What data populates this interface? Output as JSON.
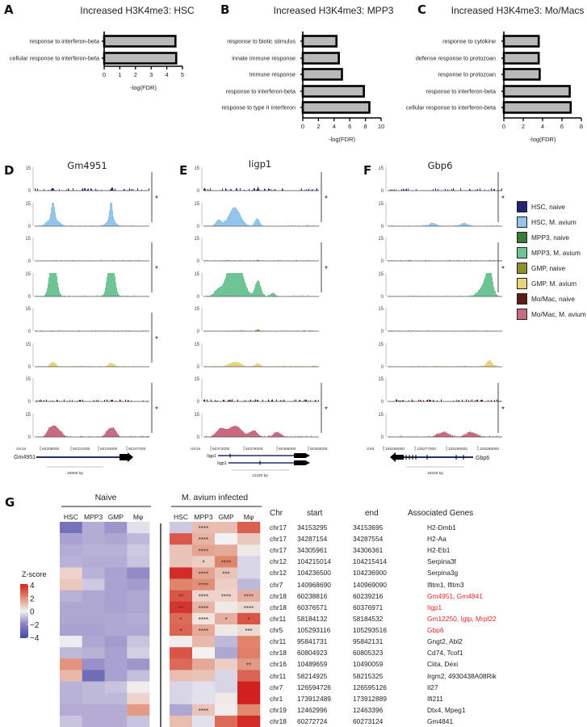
{
  "panel_labels": {
    "a": "A",
    "b": "B",
    "c": "C",
    "d": "D",
    "e": "E",
    "f": "F",
    "g": "G"
  },
  "chart_data": [
    {
      "type": "bar",
      "orientation": "horizontal",
      "panel": "A",
      "title": "Increased H3K4me3: HSC",
      "xlabel": "-log(FDR)",
      "xlim": [
        0,
        5
      ],
      "xticks": [
        0,
        1,
        2,
        3,
        4,
        5
      ],
      "categories": [
        "response to interferon-beta",
        "cellular response to interferon-beta"
      ],
      "values": [
        4.55,
        4.6
      ]
    },
    {
      "type": "bar",
      "orientation": "horizontal",
      "panel": "B",
      "title": "Increased H3K4me3: MPP3",
      "xlabel": "-log(FDR)",
      "xlim": [
        0,
        10
      ],
      "xticks": [
        0,
        2,
        4,
        6,
        8,
        10
      ],
      "categories": [
        "response to biotic stimulus",
        "innate immune response",
        "immune response",
        "response to interferon-beta",
        "response to type II interferon"
      ],
      "values": [
        4.3,
        4.6,
        5.0,
        7.8,
        8.5
      ]
    },
    {
      "type": "bar",
      "orientation": "horizontal",
      "panel": "C",
      "title": "Increased H3K4me3: Mo/Macs",
      "xlabel": "-log(FDR)",
      "xlim": [
        0,
        8
      ],
      "xticks": [
        0,
        2,
        4,
        6,
        8
      ],
      "categories": [
        "response to cytokine",
        "defense response to protozoan",
        "response to protozoan",
        "response to interferon-beta",
        "cellular response to interferon-beta"
      ],
      "values": [
        3.6,
        3.6,
        3.7,
        6.8,
        6.9
      ]
    },
    {
      "type": "area",
      "panel": "D",
      "title": "Gm4951",
      "chrom": "chr18",
      "xlim": [
        60205400,
        60258100
      ],
      "ylim": [
        0,
        15
      ],
      "yticks": [
        0,
        15
      ],
      "coord_ticks": [
        "60208000",
        "60221000",
        "60234000",
        "60247000"
      ],
      "scale_bar": "25558 bp",
      "genes": [
        "Gm4951"
      ],
      "significant_pairs": [
        true,
        true,
        true,
        true
      ],
      "tracks": [
        {
          "name": "HSC, naive",
          "peaks": [
            [
              60213500,
              1.5,
              500
            ],
            [
              60240500,
              1.2,
              500
            ]
          ]
        },
        {
          "name": "HSC, M. avium",
          "peaks": [
            [
              60213600,
              13,
              700
            ],
            [
              60213600,
              5,
              2500
            ],
            [
              60240300,
              12,
              600
            ],
            [
              60240300,
              5,
              1800
            ]
          ]
        },
        {
          "name": "MPP3, naive",
          "peaks": []
        },
        {
          "name": "MPP3, M. avium",
          "peaks": [
            [
              60213600,
              30,
              1400
            ],
            [
              60240300,
              30,
              1400
            ]
          ]
        },
        {
          "name": "GMP, naive",
          "peaks": []
        },
        {
          "name": "GMP, M. avium",
          "peaks": [
            [
              60213600,
              3,
              1200
            ],
            [
              60240300,
              2.5,
              1200
            ]
          ]
        },
        {
          "name": "Mo/Mac, naive",
          "peaks": []
        },
        {
          "name": "Mo/Mac, M. avium",
          "peaks": [
            [
              60212000,
              5,
              1300
            ],
            [
              60214500,
              6,
              1300
            ],
            [
              60217000,
              3,
              1300
            ],
            [
              60239000,
              4,
              1300
            ],
            [
              60241500,
              5,
              1300
            ]
          ]
        }
      ]
    },
    {
      "type": "area",
      "panel": "E",
      "title": "Iigp1",
      "chrom": "chr18",
      "xlim": [
        60370460,
        60394900
      ],
      "ylim": [
        0,
        15
      ],
      "yticks": [
        0,
        15
      ],
      "coord_ticks": [
        "60372000",
        "60379000",
        "60386000",
        "60393000"
      ],
      "scale_bar": "12320 bp",
      "genes": [
        "Iigp1",
        "Iigp1"
      ],
      "significant_pairs": [
        true,
        true,
        false,
        true
      ],
      "tracks": [
        {
          "name": "HSC, naive",
          "peaks": [
            [
              60381900,
              1.5,
              200
            ]
          ]
        },
        {
          "name": "HSC, M. avium",
          "peaks": [
            [
              60376960,
              12,
              1200
            ],
            [
              60373540,
              4,
              600
            ],
            [
              60381750,
              5,
              500
            ]
          ]
        },
        {
          "name": "MPP3, naive",
          "peaks": [
            [
              60381900,
              0.6,
              200
            ]
          ]
        },
        {
          "name": "MPP3, M. avium",
          "peaks": [
            [
              60377000,
              30,
              1400
            ],
            [
              60373500,
              4,
              800
            ],
            [
              60381900,
              10,
              600
            ],
            [
              60385000,
              2,
              500
            ]
          ]
        },
        {
          "name": "GMP, naive",
          "peaks": [
            [
              60381900,
              1,
              300
            ]
          ]
        },
        {
          "name": "GMP, M. avium",
          "peaks": [
            [
              60377000,
              3,
              1200
            ],
            [
              60381900,
              2,
              500
            ]
          ]
        },
        {
          "name": "Mo/Mac, naive",
          "peaks": []
        },
        {
          "name": "Mo/Mac, M. avium",
          "peaks": [
            [
              60374000,
              5,
              900
            ],
            [
              60377000,
              7,
              1400
            ],
            [
              60381000,
              4,
              800
            ],
            [
              60386000,
              3,
              800
            ]
          ]
        }
      ]
    },
    {
      "type": "area",
      "panel": "F",
      "title": "Gbp6",
      "chrom": "chr5",
      "xlim": [
        105269150,
        105302000
      ],
      "ylim": [
        0,
        15
      ],
      "yticks": [
        0,
        15
      ],
      "coord_ticks": [
        "105268000",
        "105277000",
        "105286000",
        "105295000"
      ],
      "scale_bar": "16529 bp",
      "genes": [
        "Gbp6"
      ],
      "significant_pairs": [
        true,
        true,
        false,
        true
      ],
      "tracks": [
        {
          "name": "HSC, naive",
          "peaks": []
        },
        {
          "name": "HSC, M. avium",
          "peaks": [
            [
              105282000,
              2,
              1000
            ],
            [
              105291000,
              2,
              1000
            ]
          ]
        },
        {
          "name": "MPP3, naive",
          "peaks": []
        },
        {
          "name": "MPP3, M. avium",
          "peaks": [
            [
              105298200,
              14,
              800
            ],
            [
              105297000,
              8,
              1500
            ]
          ]
        },
        {
          "name": "GMP, naive",
          "peaks": []
        },
        {
          "name": "GMP, M. avium",
          "peaks": [
            [
              105298200,
              4,
              800
            ]
          ]
        },
        {
          "name": "Mo/Mac, naive",
          "peaks": []
        },
        {
          "name": "Mo/Mac, M. avium",
          "peaks": [
            [
              105285000,
              3,
              1500
            ],
            [
              105293000,
              3,
              1500
            ]
          ]
        }
      ]
    },
    {
      "type": "heatmap",
      "panel": "G",
      "groups": [
        "Naive",
        "M. avium infected"
      ],
      "columns": [
        "HSC",
        "MPP3",
        "GMP",
        "Mφ"
      ],
      "colorbar_label": "Z-score",
      "colorbar_ticks": [
        "4",
        "2",
        "0",
        "−2",
        "−4"
      ],
      "zlim": [
        -4,
        4
      ],
      "naive": [
        [
          -2.5,
          -1.2,
          -1.6,
          -0.3
        ],
        [
          -1.4,
          -1.2,
          -1.3,
          -1.0
        ],
        [
          -1.2,
          -1.1,
          -1.1,
          -0.7
        ],
        [
          -1.1,
          -1.2,
          -1.2,
          -0.8
        ],
        [
          0.6,
          -1.1,
          -1.4,
          -1.8
        ],
        [
          0.8,
          -0.7,
          -1.4,
          -1.5
        ],
        [
          -1.1,
          -1.3,
          -1.4,
          -1.3
        ],
        [
          -1.3,
          -1.3,
          -1.4,
          -1.3
        ],
        [
          -1.3,
          -1.3,
          -1.3,
          -1.2
        ],
        [
          -1.4,
          -1.4,
          -1.3,
          -1.3
        ],
        [
          -0.1,
          -1.3,
          -1.5,
          -0.8
        ],
        [
          -1.0,
          -1.1,
          -1.4,
          -0.6
        ],
        [
          1.8,
          -1.7,
          -1.4,
          -1.6
        ],
        [
          1.1,
          -2.7,
          -1.4,
          -0.9
        ],
        [
          -1.1,
          -1.0,
          -0.8,
          0.1
        ],
        [
          -1.1,
          -1.0,
          -1.0,
          0.6
        ],
        [
          -1.2,
          -1.2,
          -1.2,
          1.7
        ],
        [
          -0.8,
          -1.2,
          -1.2,
          -0.8
        ]
      ],
      "infected": [
        [
          -0.7,
          1.0,
          1.0,
          2.8
        ],
        [
          2.9,
          1.2,
          0.0,
          0.8
        ],
        [
          0.9,
          1.5,
          1.4,
          0.2
        ],
        [
          0.9,
          0.7,
          2.1,
          -0.5
        ],
        [
          3.8,
          1.5,
          0.9,
          -0.5
        ],
        [
          2.1,
          1.9,
          0.7,
          -1.0
        ],
        [
          3.0,
          0.6,
          0.6,
          1.3
        ],
        [
          3.6,
          1.2,
          0.2,
          0.5
        ],
        [
          2.6,
          0.3,
          1.3,
          3.0
        ],
        [
          2.7,
          1.4,
          0.2,
          0.5
        ],
        [
          0.1,
          1.1,
          -1.0,
          2.1
        ],
        [
          3.0,
          0.0,
          -1.3,
          2.2
        ],
        [
          2.6,
          1.4,
          0.7,
          1.7
        ],
        [
          1.0,
          0.9,
          -0.5,
          2.7
        ],
        [
          -0.5,
          -0.3,
          -0.5,
          4.0
        ],
        [
          -0.5,
          -0.3,
          0.2,
          4.0
        ],
        [
          -1.3,
          0.9,
          0.1,
          2.0
        ],
        [
          1.0,
          -0.3,
          2.6,
          3.8
        ]
      ],
      "infected_stars": [
        [
          "",
          "****",
          "",
          ""
        ],
        [
          "",
          "****",
          "",
          ""
        ],
        [
          "",
          "****",
          "",
          ""
        ],
        [
          "",
          "*",
          "****",
          ""
        ],
        [
          "",
          "****",
          "***",
          ""
        ],
        [
          "",
          "****",
          "",
          ""
        ],
        [
          "**",
          "****",
          "****",
          "****"
        ],
        [
          "**",
          "****",
          "",
          "****"
        ],
        [
          "*",
          "****",
          "*",
          "*"
        ],
        [
          "*",
          "****",
          "",
          "***"
        ],
        [
          "",
          "",
          "",
          ""
        ],
        [
          "",
          "",
          "",
          ""
        ],
        [
          "",
          "",
          "",
          "**"
        ],
        [
          "",
          "",
          "",
          ""
        ],
        [
          "",
          "",
          "",
          ""
        ],
        [
          "",
          "",
          "",
          ""
        ],
        [
          "",
          "****",
          "",
          ""
        ],
        [
          "",
          "",
          "",
          ""
        ]
      ]
    }
  ],
  "legend": [
    {
      "label": "HSC, naive",
      "color": "#23237a"
    },
    {
      "label": "HSC, M. avium",
      "color": "#93c5ea"
    },
    {
      "label": "MPP3, naive",
      "color": "#3a7a3a"
    },
    {
      "label": "MPP3, M. avium",
      "color": "#6fc495"
    },
    {
      "label": "GMP, naive",
      "color": "#8f8f2e"
    },
    {
      "label": "GMP, M. avium",
      "color": "#e8d47c"
    },
    {
      "label": "Mo/Mac, naive",
      "color": "#5e1c16"
    },
    {
      "label": "Mo/Mac, M. avium",
      "color": "#c96b80"
    }
  ],
  "highlight_color": "#e02828",
  "table": {
    "headers": {
      "chr": "Chr",
      "start": "start",
      "end": "end",
      "genes": "Associated Genes"
    },
    "rows": [
      {
        "chr": "chr17",
        "start": "34153295",
        "end": "34153695",
        "genes": "H2-Dmb1",
        "highlight": false
      },
      {
        "chr": "chr17",
        "start": "34287154",
        "end": "34287554",
        "genes": "H2-Aa",
        "highlight": false
      },
      {
        "chr": "chr17",
        "start": "34305961",
        "end": "34306361",
        "genes": "H2-Eb1",
        "highlight": false
      },
      {
        "chr": "chr12",
        "start": "104215014",
        "end": "104215414",
        "genes": "Serpina3f",
        "highlight": false
      },
      {
        "chr": "chr12",
        "start": "104236500",
        "end": "104236900",
        "genes": "Serpina3g",
        "highlight": false
      },
      {
        "chr": "chr7",
        "start": "140968690",
        "end": "140969090",
        "genes": "Ifitm1, Ifitm3",
        "highlight": false
      },
      {
        "chr": "chr18",
        "start": "60238816",
        "end": "60239216",
        "genes": "Gm4951, Gm4841",
        "highlight": true
      },
      {
        "chr": "chr18",
        "start": "60376571",
        "end": "60376971",
        "genes": "Iigp1",
        "highlight": true
      },
      {
        "chr": "chr11",
        "start": "58184132",
        "end": "58184532",
        "genes": "Gm12250, Igtp, Mrpl22",
        "highlight": true
      },
      {
        "chr": "chr5",
        "start": "105293116",
        "end": "105293516",
        "genes": "Gbp6",
        "highlight": true
      },
      {
        "chr": "chr11",
        "start": "95841731",
        "end": "95842131",
        "genes": "Gngt2, Abl2",
        "highlight": false
      },
      {
        "chr": "chr18",
        "start": "60804923",
        "end": "60805323",
        "genes": "Cd74, Tcof1",
        "highlight": false
      },
      {
        "chr": "chr16",
        "start": "10489659",
        "end": "10490059",
        "genes": "Ciita, Dexi",
        "highlight": false
      },
      {
        "chr": "chr11",
        "start": "58214925",
        "end": "58215325",
        "genes": "Irgm2, 4930438A08Rik",
        "highlight": false
      },
      {
        "chr": "chr7",
        "start": "126594726",
        "end": "126595126",
        "genes": "Il27",
        "highlight": false
      },
      {
        "chr": "chr1",
        "start": "173912489",
        "end": "173912889",
        "genes": "Ifi211",
        "highlight": false
      },
      {
        "chr": "chr19",
        "start": "12462996",
        "end": "12463396",
        "genes": "Dtx4, Mpeg1",
        "highlight": false
      },
      {
        "chr": "chr18",
        "start": "60272724",
        "end": "60273124",
        "genes": "Gm4841",
        "highlight": false
      }
    ]
  }
}
